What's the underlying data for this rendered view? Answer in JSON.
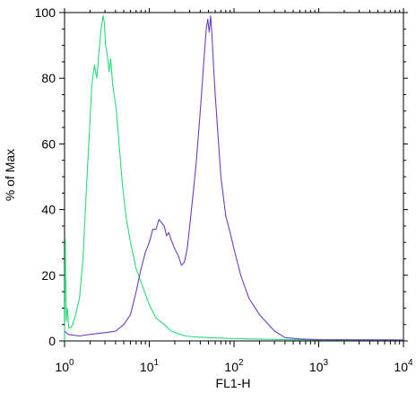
{
  "chart_data": {
    "type": "line",
    "xlabel": "FL1-H",
    "ylabel": "% of Max",
    "xscale": "log",
    "xlim": [
      1,
      10000
    ],
    "ylim": [
      0,
      100
    ],
    "yticks": [
      0,
      20,
      40,
      60,
      80,
      100
    ],
    "xticks": [
      {
        "value": 1,
        "base": "10",
        "exp": "0"
      },
      {
        "value": 10,
        "base": "10",
        "exp": "1"
      },
      {
        "value": 100,
        "base": "10",
        "exp": "2"
      },
      {
        "value": 1000,
        "base": "10",
        "exp": "3"
      },
      {
        "value": 10000,
        "base": "10",
        "exp": "4"
      }
    ],
    "grid": false,
    "legend": "none",
    "series": [
      {
        "color": "#22dd77",
        "x": [
          1.0,
          1.02,
          1.05,
          1.08,
          1.12,
          1.18,
          1.25,
          1.35,
          1.5,
          1.65,
          1.8,
          1.95,
          2.1,
          2.25,
          2.4,
          2.55,
          2.7,
          2.85,
          2.95,
          3.05,
          3.2,
          3.35,
          3.5,
          3.7,
          3.9,
          4.1,
          4.4,
          4.8,
          5.3,
          6.0,
          7.0,
          8.5,
          10.0,
          12.0,
          15.0,
          18.0,
          22.0,
          27.0,
          35.0,
          50.0,
          80.0,
          150.0,
          400.0,
          1000.0,
          10000.0
        ],
        "y": [
          0,
          31,
          6,
          10,
          4,
          4,
          5,
          8,
          13,
          25,
          45,
          62,
          78,
          84,
          80,
          88,
          95,
          99,
          97,
          90,
          87,
          82,
          86,
          78,
          74,
          70,
          60,
          48,
          38,
          30,
          22,
          16,
          11,
          7,
          5,
          3,
          2.2,
          1.5,
          1.2,
          1.0,
          0.8,
          0.6,
          0.4,
          0.3,
          0.3
        ]
      },
      {
        "color": "#6a3fc4",
        "x": [
          1.0,
          1.1,
          1.5,
          2.0,
          3.0,
          4.0,
          5.0,
          6.0,
          7.0,
          8.0,
          9.0,
          10.0,
          11.0,
          12.0,
          13.0,
          14.0,
          15.0,
          16.0,
          17.0,
          18.0,
          20.0,
          22.0,
          24.0,
          26.0,
          28.0,
          30.0,
          33.0,
          36.0,
          40.0,
          44.0,
          47.0,
          49.0,
          51.0,
          53.0,
          55.0,
          57.0,
          60.0,
          65.0,
          70.0,
          80.0,
          90.0,
          100.0,
          120.0,
          150.0,
          200.0,
          300.0,
          400.0,
          600.0,
          1000.0,
          10000.0
        ],
        "y": [
          3,
          2,
          1.5,
          2,
          2.5,
          3,
          5,
          8,
          15,
          22,
          27,
          30,
          34,
          34,
          37,
          36,
          35,
          32,
          33,
          31,
          28,
          26,
          23,
          24,
          28,
          35,
          45,
          55,
          70,
          85,
          95,
          98,
          94,
          99,
          93,
          85,
          75,
          62,
          50,
          38,
          33,
          28,
          20,
          13,
          8,
          3,
          1,
          0.6,
          0.4,
          0.3
        ]
      }
    ]
  }
}
